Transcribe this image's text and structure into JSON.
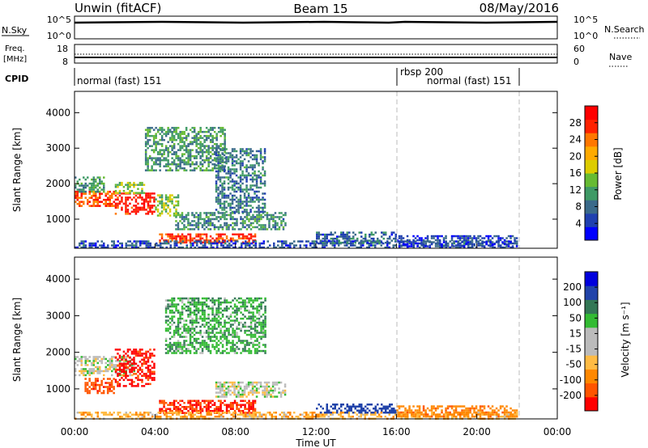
{
  "header": {
    "title": "Unwin (fitACF)",
    "beam": "Beam 15",
    "date": "08/May/2016"
  },
  "nsky_panel": {
    "label": "N.Sky",
    "ticks_left": [
      "10^5",
      "10^0"
    ],
    "right_label": "N.Search",
    "ticks_right": [
      "10^5",
      "10^0"
    ]
  },
  "freq_panel": {
    "label_line1": "Freq.",
    "label_line2": "[MHz]",
    "ticks_left": [
      "18",
      "8"
    ],
    "right_label": "Nave",
    "ticks_right": [
      "60",
      "0"
    ]
  },
  "cpid_panel": {
    "label": "CPID",
    "segments": [
      {
        "text": "normal (fast) 151",
        "start_hour": 0
      },
      {
        "text": "rbsp 200",
        "start_hour": 16
      },
      {
        "text": "normal (fast) 151",
        "start_hour": 16
      }
    ],
    "change_hours": [
      16,
      22
    ]
  },
  "x_axis": {
    "label": "Time UT",
    "ticks": [
      "00:00",
      "04:00",
      "08:00",
      "12:00",
      "16:00",
      "20:00",
      "00:00"
    ]
  },
  "colors": {
    "power_scale": [
      "#0000ff",
      "#2040b0",
      "#3a6a8a",
      "#3f9a66",
      "#66bb33",
      "#ddcc00",
      "#ffaa00",
      "#ff7700",
      "#ff2200",
      "#ff0000"
    ],
    "velocity_scale": [
      "#ff0000",
      "#ff5500",
      "#ff8800",
      "#ffbb44",
      "#bbbbbb",
      "#bbbbbb",
      "#33bb33",
      "#337755",
      "#2244aa",
      "#0000dd"
    ]
  },
  "chart_data": [
    {
      "type": "heatmap",
      "name": "power",
      "ylabel": "Slant Range [km]",
      "xlabel": "",
      "xlim": [
        0,
        24
      ],
      "ylim": [
        180,
        4600
      ],
      "yticks": [
        "1000",
        "2000",
        "3000",
        "4000"
      ],
      "colorbar": {
        "label": "Power [dB]",
        "ticks": [
          "4",
          "8",
          "12",
          "16",
          "20",
          "24",
          "28"
        ],
        "range": [
          0,
          32
        ]
      },
      "regions": [
        {
          "x": [
            0.0,
            2.0
          ],
          "y": [
            1400,
            1800
          ],
          "value": 26
        },
        {
          "x": [
            0.0,
            1.5
          ],
          "y": [
            1800,
            2200
          ],
          "value": 12
        },
        {
          "x": [
            2.0,
            4.0
          ],
          "y": [
            1150,
            1750
          ],
          "value": 29
        },
        {
          "x": [
            2.0,
            3.5
          ],
          "y": [
            1750,
            2050
          ],
          "value": 14
        },
        {
          "x": [
            4.0,
            5.2
          ],
          "y": [
            1100,
            1700
          ],
          "value": 15
        },
        {
          "x": [
            4.2,
            9.0
          ],
          "y": [
            350,
            600
          ],
          "value": 27
        },
        {
          "x": [
            5.0,
            10.5
          ],
          "y": [
            700,
            1200
          ],
          "value": 10
        },
        {
          "x": [
            0.0,
            22.0
          ],
          "y": [
            180,
            400
          ],
          "value": 6
        },
        {
          "x": [
            3.5,
            7.5
          ],
          "y": [
            2400,
            3600
          ],
          "value": 11
        },
        {
          "x": [
            7.0,
            9.5
          ],
          "y": [
            1200,
            3000
          ],
          "value": 9
        },
        {
          "x": [
            12.0,
            16.0
          ],
          "y": [
            350,
            650
          ],
          "value": 7
        },
        {
          "x": [
            16.0,
            22.0
          ],
          "y": [
            250,
            550
          ],
          "value": 5
        }
      ]
    },
    {
      "type": "heatmap",
      "name": "velocity",
      "ylabel": "Slant Range [km]",
      "xlabel": "Time UT",
      "xlim": [
        0,
        24
      ],
      "ylim": [
        180,
        4600
      ],
      "yticks": [
        "1000",
        "2000",
        "3000",
        "4000"
      ],
      "colorbar": {
        "label": "Velocity [m s⁻¹]",
        "ticks": [
          "200",
          "100",
          "50",
          "15",
          "-15",
          "-50",
          "-100",
          "-200"
        ]
      },
      "regions": [
        {
          "x": [
            0.0,
            3.0
          ],
          "y": [
            1400,
            1900
          ],
          "value": 0
        },
        {
          "x": [
            2.0,
            4.0
          ],
          "y": [
            1100,
            2100
          ],
          "value": -220
        },
        {
          "x": [
            0.5,
            2.0
          ],
          "y": [
            900,
            1300
          ],
          "value": -180
        },
        {
          "x": [
            4.2,
            9.0
          ],
          "y": [
            350,
            700
          ],
          "value": -200
        },
        {
          "x": [
            0.0,
            22.0
          ],
          "y": [
            180,
            380
          ],
          "value": -40
        },
        {
          "x": [
            4.5,
            9.5
          ],
          "y": [
            2000,
            3500
          ],
          "value": 40
        },
        {
          "x": [
            7.0,
            10.5
          ],
          "y": [
            800,
            1200
          ],
          "value": 0
        },
        {
          "x": [
            12.0,
            16.0
          ],
          "y": [
            350,
            600
          ],
          "value": 150
        },
        {
          "x": [
            16.0,
            22.0
          ],
          "y": [
            250,
            550
          ],
          "value": -80
        }
      ]
    }
  ]
}
